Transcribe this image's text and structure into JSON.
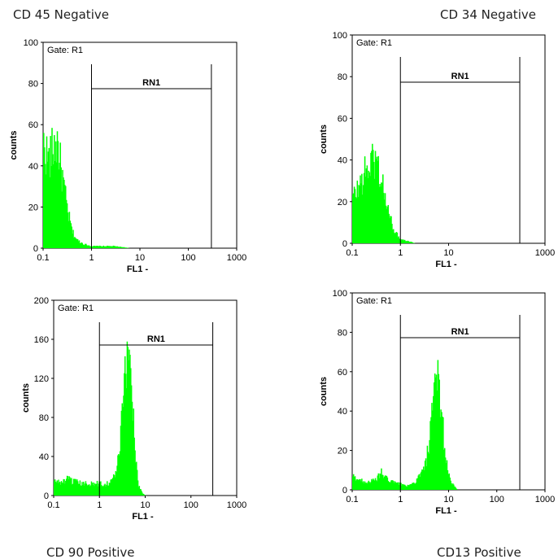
{
  "chart_data": [
    {
      "type": "histogram",
      "caption": "CD 45 Negative",
      "gate": "Gate: R1",
      "marker": {
        "label": "RN1",
        "from": 1,
        "to": 300
      },
      "xlabel": "FL1 -",
      "ylabel": "counts",
      "xscale": "log",
      "xlim": [
        0.1,
        1000
      ],
      "xticks": [
        "0.1",
        "1",
        "10",
        "100",
        "1000"
      ],
      "ylim": [
        0,
        100
      ],
      "yticks": [
        "0",
        "20",
        "40",
        "60",
        "80",
        "100"
      ],
      "color": "#00ff00",
      "profile": [
        [
          0.1,
          52
        ],
        [
          0.13,
          44
        ],
        [
          0.16,
          50
        ],
        [
          0.2,
          53
        ],
        [
          0.23,
          40
        ],
        [
          0.27,
          30
        ],
        [
          0.32,
          18
        ],
        [
          0.4,
          8
        ],
        [
          0.5,
          4
        ],
        [
          0.7,
          2
        ],
        [
          1.0,
          1
        ],
        [
          1.6,
          1
        ],
        [
          2.8,
          1
        ],
        [
          4.5,
          0.5
        ],
        [
          6,
          0
        ]
      ]
    },
    {
      "type": "histogram",
      "caption": "CD 34 Negative",
      "gate": "Gate: R1",
      "marker": {
        "label": "RN1",
        "from": 1,
        "to": 300
      },
      "xlabel": "FL1 -",
      "ylabel": "counts",
      "xscale": "log",
      "xlim": [
        0.1,
        1000
      ],
      "xticks": [
        "0.1",
        "1",
        "10",
        "1000"
      ],
      "ylim": [
        0,
        100
      ],
      "yticks": [
        "0",
        "20",
        "40",
        "60",
        "80",
        "100"
      ],
      "color": "#00ff00",
      "profile": [
        [
          0.1,
          22
        ],
        [
          0.13,
          27
        ],
        [
          0.17,
          33
        ],
        [
          0.22,
          38
        ],
        [
          0.27,
          42
        ],
        [
          0.32,
          40
        ],
        [
          0.4,
          32
        ],
        [
          0.5,
          20
        ],
        [
          0.65,
          10
        ],
        [
          0.8,
          5
        ],
        [
          1.0,
          2
        ],
        [
          1.5,
          1
        ],
        [
          2,
          0
        ]
      ]
    },
    {
      "type": "histogram",
      "caption": "CD 90 Positive",
      "gate": "Gate: R1",
      "marker": {
        "label": "RN1",
        "from": 1,
        "to": 300
      },
      "xlabel": "FL1 -",
      "ylabel": "counts",
      "xscale": "log",
      "xlim": [
        0.1,
        1000
      ],
      "xticks": [
        "0.1",
        "1",
        "10",
        "100",
        "1000"
      ],
      "ylim": [
        0,
        200
      ],
      "yticks": [
        "0",
        "40",
        "80",
        "120",
        "160",
        "200"
      ],
      "color": "#00ff00",
      "profile": [
        [
          0.1,
          15
        ],
        [
          0.15,
          14
        ],
        [
          0.2,
          17
        ],
        [
          0.3,
          14
        ],
        [
          0.45,
          12
        ],
        [
          0.6,
          13
        ],
        [
          0.8,
          12
        ],
        [
          1.0,
          13
        ],
        [
          1.3,
          12
        ],
        [
          1.7,
          14
        ],
        [
          2.2,
          22
        ],
        [
          2.7,
          45
        ],
        [
          3.2,
          90
        ],
        [
          3.8,
          140
        ],
        [
          4.2,
          155
        ],
        [
          4.7,
          145
        ],
        [
          5.3,
          100
        ],
        [
          6,
          45
        ],
        [
          7,
          12
        ],
        [
          8.5,
          3
        ],
        [
          10,
          0
        ]
      ]
    },
    {
      "type": "histogram",
      "caption": "CD13 Positive",
      "gate": "Gate: R1",
      "marker": {
        "label": "RN1",
        "from": 1,
        "to": 300
      },
      "xlabel": "FL1 -",
      "ylabel": "counts",
      "xscale": "log",
      "xlim": [
        0.1,
        1000
      ],
      "xticks": [
        "0.1",
        "1",
        "10",
        "100",
        "1000"
      ],
      "ylim": [
        0,
        100
      ],
      "yticks": [
        "0",
        "20",
        "40",
        "60",
        "80",
        "100"
      ],
      "color": "#00ff00",
      "profile": [
        [
          0.1,
          7
        ],
        [
          0.15,
          5
        ],
        [
          0.2,
          4
        ],
        [
          0.3,
          5
        ],
        [
          0.4,
          9
        ],
        [
          0.5,
          6
        ],
        [
          0.7,
          4
        ],
        [
          1.0,
          3
        ],
        [
          1.5,
          2
        ],
        [
          2.0,
          4
        ],
        [
          2.6,
          8
        ],
        [
          3.2,
          12
        ],
        [
          4,
          25
        ],
        [
          4.8,
          45
        ],
        [
          5.6,
          58
        ],
        [
          6.3,
          56
        ],
        [
          7.2,
          40
        ],
        [
          8.3,
          20
        ],
        [
          10,
          8
        ],
        [
          12,
          3
        ],
        [
          15,
          0
        ]
      ]
    }
  ]
}
